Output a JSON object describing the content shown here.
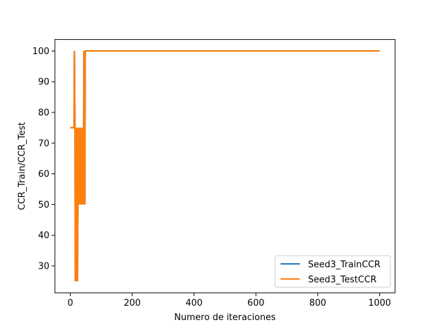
{
  "chart_data": {
    "type": "line",
    "title": "",
    "xlabel": "Numero de iteraciones",
    "ylabel": "CCR_Train/CCR_Test",
    "xlim": [
      -50,
      1050
    ],
    "ylim": [
      21.25,
      103.75
    ],
    "xticks": [
      0,
      200,
      400,
      600,
      800,
      1000
    ],
    "yticks": [
      30,
      40,
      50,
      60,
      70,
      80,
      90,
      100
    ],
    "grid": false,
    "legend": "lower-right",
    "series": [
      {
        "name": "Seed3_TrainCCR",
        "color": "#1f77b4",
        "x": [
          0,
          12,
          13,
          15,
          16,
          18,
          19,
          22,
          23,
          26,
          27,
          30,
          31,
          34,
          35,
          38,
          39,
          41,
          42,
          44,
          45,
          46,
          47,
          48,
          50,
          1000
        ],
        "y": [
          75,
          75,
          100,
          75,
          25,
          75,
          25,
          75,
          25,
          75,
          50,
          75,
          50,
          75,
          50,
          75,
          50,
          75,
          50,
          100,
          50,
          100,
          50,
          100,
          100,
          100
        ]
      },
      {
        "name": "Seed3_TestCCR",
        "color": "#ff7f0e",
        "x": [
          0,
          12,
          13,
          15,
          16,
          18,
          19,
          22,
          23,
          26,
          27,
          30,
          31,
          34,
          35,
          38,
          39,
          41,
          42,
          44,
          45,
          46,
          47,
          48,
          50,
          1000
        ],
        "y": [
          75,
          75,
          100,
          75,
          25,
          75,
          25,
          75,
          25,
          75,
          50,
          75,
          50,
          75,
          50,
          75,
          50,
          75,
          50,
          100,
          50,
          100,
          50,
          100,
          100,
          100
        ]
      }
    ]
  }
}
